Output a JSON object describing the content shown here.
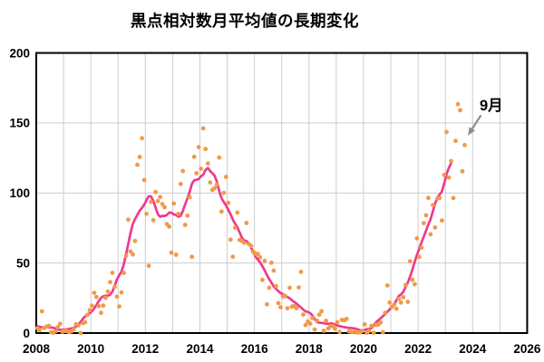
{
  "chart_data": {
    "type": "scatter",
    "title": "黒点相対数月平均値の長期変化",
    "xlabel": "",
    "ylabel": "",
    "xlim": [
      2008,
      2026
    ],
    "ylim": [
      0,
      200
    ],
    "x_ticks": [
      2008,
      2010,
      2012,
      2014,
      2016,
      2018,
      2020,
      2022,
      2024,
      2026
    ],
    "y_ticks": [
      0,
      50,
      100,
      150,
      200
    ],
    "grid": true,
    "gridline_years_step": 1,
    "legend": "none",
    "colors": {
      "dots": "#F09A4A",
      "smoothed_line": "#EF3A8D",
      "arrow": "#8C8C8C",
      "grid": "#CCCCCC",
      "axis": "#000000",
      "text": "#000000"
    },
    "series": [
      {
        "name": "monthly-mean-sunspot-number",
        "style": "scatter-dots",
        "start": "2008-01",
        "end": "2023-09",
        "years": [
          "2008",
          "2009",
          "2010",
          "2011",
          "2012",
          "2013",
          "2014",
          "2015",
          "2016",
          "2017",
          "2018",
          "2019",
          "2020",
          "2021",
          "2022",
          "2023"
        ],
        "monthly": {
          "2008": [
            3.4,
            2.1,
            15.5,
            3.6,
            4.6,
            5.2,
            0.6,
            0.3,
            1.2,
            4.2,
            6.6,
            1.0
          ],
          "2009": [
            1.5,
            1.4,
            0.7,
            1.2,
            2.9,
            6.3,
            5.5,
            0.0,
            7.1,
            7.7,
            13.0,
            16.3
          ],
          "2010": [
            19.5,
            28.7,
            25.7,
            19.2,
            14.4,
            19.6,
            25.2,
            29.6,
            36.4,
            43.0,
            33.0,
            26.0
          ],
          "2011": [
            19.0,
            29.0,
            43.0,
            55.2,
            81.0,
            58.2,
            56.1,
            65.8,
            120.1,
            125.7,
            139.1,
            109.3
          ],
          "2012": [
            85.1,
            48.0,
            93.7,
            80.6,
            100.7,
            94.2,
            97.1,
            92.1,
            89.8,
            77.8,
            76.0,
            57.4
          ],
          "2013": [
            92.5,
            55.9,
            85.1,
            106.4,
            115.7,
            77.2,
            83.8,
            97.0,
            54.4,
            125.8,
            114.1,
            132.7
          ],
          "2014": [
            117.3,
            146.1,
            131.4,
            121.1,
            107.5,
            102.2,
            103.5,
            106.2,
            125.3,
            86.7,
            100.1,
            111.5
          ],
          "2015": [
            93.0,
            66.7,
            54.5,
            75.3,
            86.0,
            66.5,
            65.8,
            64.4,
            78.6,
            63.6,
            62.2,
            58.0
          ],
          "2016": [
            56.6,
            56.4,
            54.1,
            37.9,
            51.5,
            20.5,
            32.4,
            50.2,
            44.6,
            33.4,
            21.4,
            18.5
          ],
          "2017": [
            26.1,
            26.4,
            17.7,
            32.3,
            18.9,
            19.2,
            17.8,
            32.6,
            43.7,
            13.2,
            5.7,
            8.2
          ],
          "2018": [
            6.8,
            10.7,
            2.5,
            8.9,
            13.1,
            15.6,
            1.6,
            8.7,
            3.3,
            4.9,
            4.9,
            3.1
          ],
          "2019": [
            7.7,
            0.8,
            9.4,
            9.1,
            10.1,
            1.2,
            0.9,
            0.5,
            1.1,
            0.4,
            0.5,
            1.5
          ],
          "2020": [
            6.2,
            0.2,
            1.5,
            5.2,
            0.2,
            5.8,
            6.1,
            7.5,
            0.6,
            14.4,
            34.0,
            21.8
          ],
          "2021": [
            18.6,
            20.3,
            17.3,
            24.5,
            21.8,
            25.6,
            34.3,
            22.3,
            51.3,
            37.9,
            34.9,
            67.6
          ],
          "2022": [
            54.4,
            61.0,
            78.5,
            84.1,
            96.5,
            70.5,
            91.4,
            75.4,
            96.1,
            96.5,
            80.3,
            112.8
          ],
          "2023": [
            143.6,
            111.0,
            122.8,
            96.4,
            137.2,
            163.4,
            159.1,
            115.5,
            134.2
          ]
        }
      },
      {
        "name": "smoothed-13-month-running-mean",
        "style": "line",
        "derived_from": "monthly-mean-sunspot-number",
        "window_months": 13
      }
    ],
    "annotation": {
      "text": "9月",
      "points_to": {
        "year": 2023,
        "month": 9,
        "value": 134.2
      }
    }
  }
}
